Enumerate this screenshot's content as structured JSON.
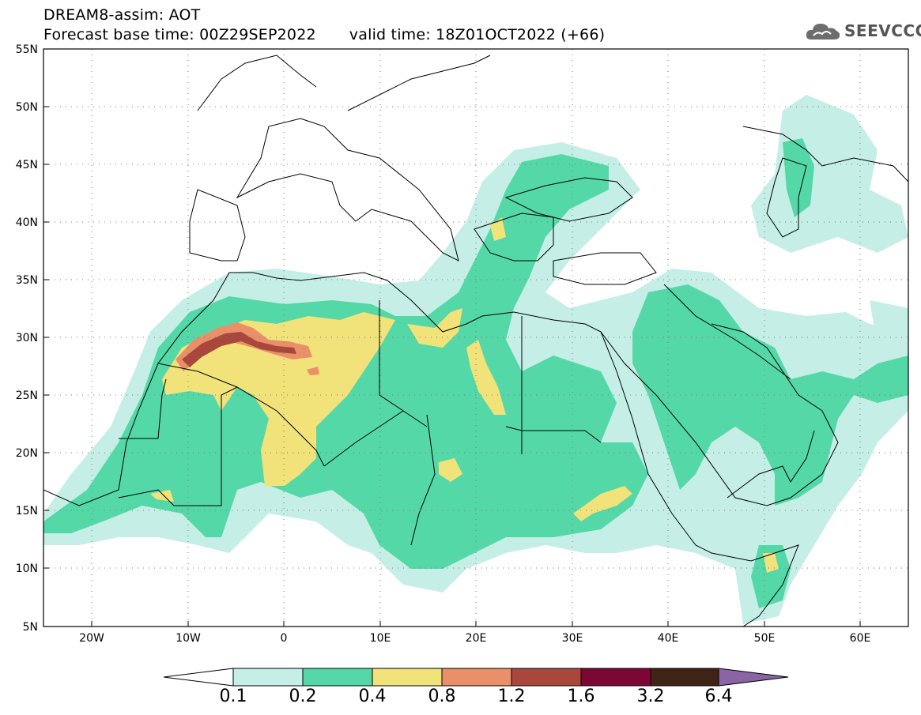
{
  "header": {
    "title_line1": "DREAM8-assim: AOT",
    "base_time": "Forecast base time: 00Z29SEP2022",
    "valid_time": "valid time: 18Z01OCT2022 (+66)"
  },
  "logo": {
    "text": "SEEVCCC",
    "icon": "cloud-icon"
  },
  "map_data": {
    "type": "filled-contour-map",
    "variable": "AOT",
    "lon_range": [
      -25,
      65
    ],
    "lat_range": [
      5,
      55
    ],
    "lat_ticks": [
      "55N",
      "50N",
      "45N",
      "40N",
      "35N",
      "30N",
      "25N",
      "20N",
      "15N",
      "10N",
      "5N"
    ],
    "lon_ticks": [
      "20W",
      "10W",
      "0",
      "10E",
      "20E",
      "30E",
      "40E",
      "50E",
      "60E"
    ],
    "grid": "dotted"
  },
  "colorbar": {
    "labels": [
      "0.1",
      "0.2",
      "0.4",
      "0.8",
      "1.2",
      "1.6",
      "3.2",
      "6.4"
    ],
    "colors": [
      "#ffffff",
      "#c5eee6",
      "#55d8a7",
      "#f1e27a",
      "#e9906a",
      "#a9473d",
      "#7c0634",
      "#3f2314",
      "#8a64a5"
    ]
  }
}
